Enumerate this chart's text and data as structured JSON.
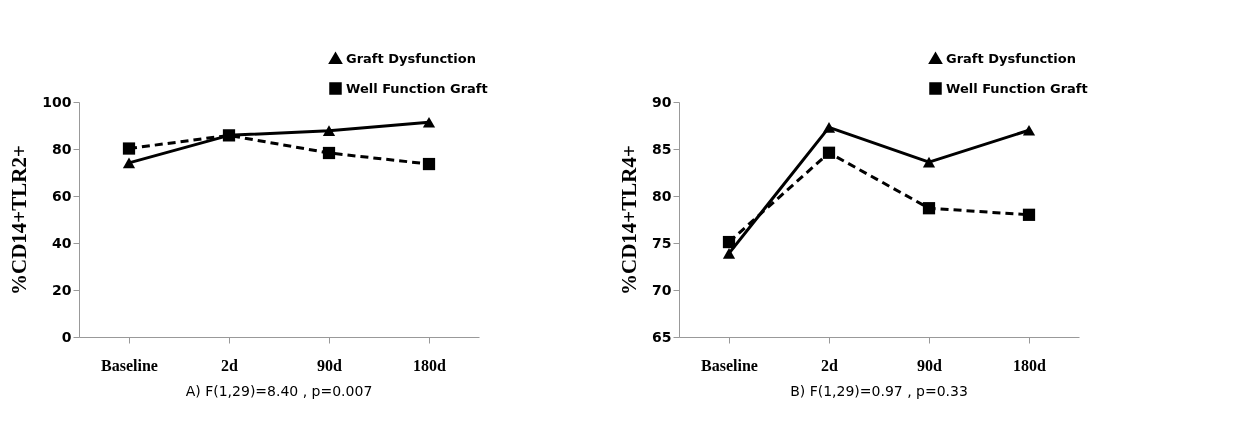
{
  "chart_data": [
    {
      "type": "line",
      "categories": [
        "Baseline",
        "2d",
        "90d",
        "180d"
      ],
      "ylabel": "%CD14+TLR2+",
      "ylim": [
        0,
        100
      ],
      "yticks": [
        0,
        20,
        40,
        60,
        80,
        100
      ],
      "grid": false,
      "legend": "top right",
      "annotations": [
        "A) F(1,29)=8.40   ,   p=0.007"
      ],
      "series": [
        {
          "name": "Graft Dysfunction",
          "color": "#000000",
          "marker": "triangle",
          "line_style": "solid",
          "values": [
            74.1,
            85.8,
            87.8,
            91.4
          ]
        },
        {
          "name": "Well Function Graft",
          "color": "#000000",
          "marker": "square",
          "line_style": "dashed",
          "values": [
            80.2,
            85.8,
            78.3,
            73.6
          ]
        }
      ]
    },
    {
      "type": "line",
      "categories": [
        "Baseline",
        "2d",
        "90d",
        "180d"
      ],
      "ylabel": "%CD14+TLR4+",
      "ylim": [
        65,
        90
      ],
      "yticks": [
        65,
        70,
        75,
        80,
        85,
        90
      ],
      "grid": false,
      "legend": "top right",
      "annotations": [
        "B) F(1,29)=0.97   ,   p=0.33"
      ],
      "series": [
        {
          "name": "Graft Dysfunction",
          "color": "#000000",
          "marker": "triangle",
          "line_style": "solid",
          "values": [
            73.9,
            87.3,
            83.6,
            87.0
          ]
        },
        {
          "name": "Well Function Graft",
          "color": "#000000",
          "marker": "square",
          "line_style": "dashed",
          "values": [
            75.1,
            84.6,
            78.7,
            78.0
          ]
        }
      ]
    }
  ]
}
